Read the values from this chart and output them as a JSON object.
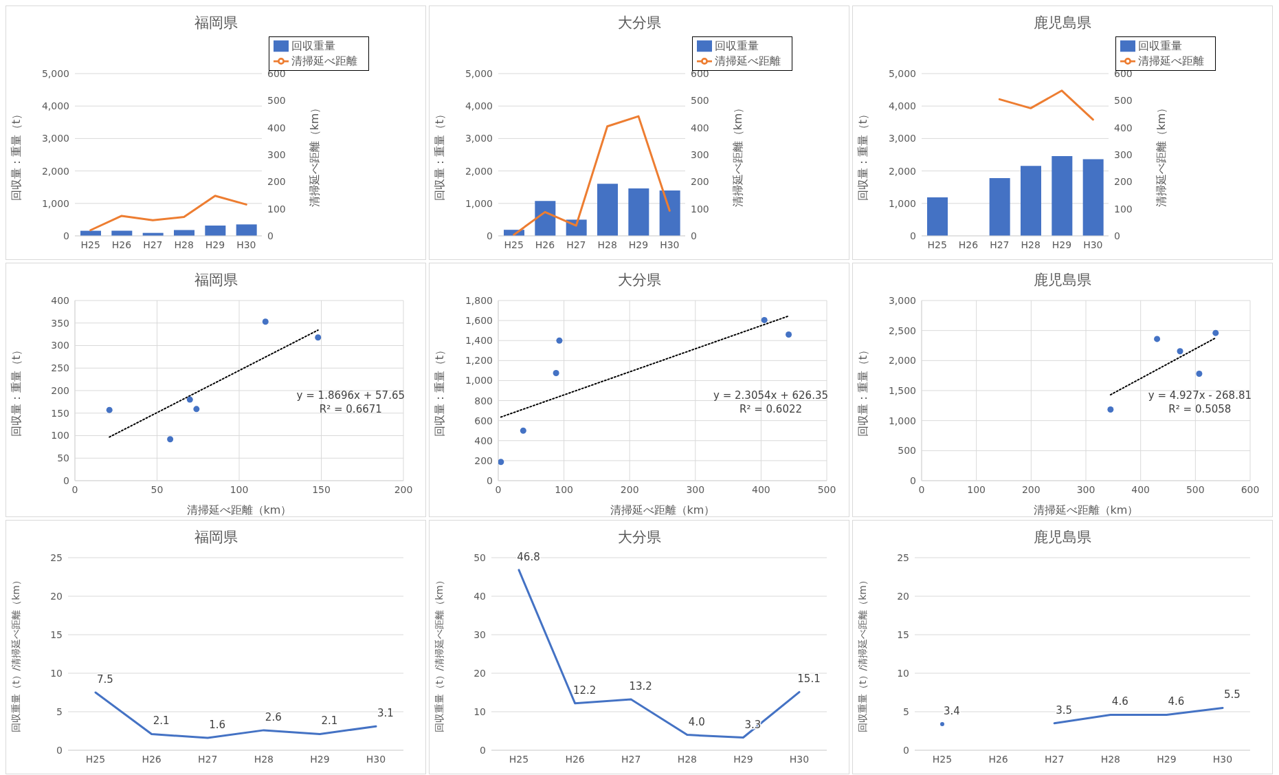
{
  "chart_data": [
    {
      "type": "bar",
      "title": "福岡県",
      "categories": [
        "H25",
        "H26",
        "H27",
        "H28",
        "H29",
        "H30"
      ],
      "ylabel": "回収量：重量（t）",
      "y2label": "清掃延べ距離（km）",
      "ylim": [
        0,
        5000
      ],
      "yticks": [
        0,
        {
          "value": 1000,
          "label": "1,000"
        },
        {
          "value": 2000,
          "label": "2,000"
        },
        {
          "value": 3000,
          "label": "3,000"
        },
        {
          "value": 4000,
          "label": "4,000"
        },
        {
          "value": 5000,
          "label": "5,000"
        }
      ],
      "y2lim": [
        0,
        600
      ],
      "y2ticks": [
        0,
        100,
        200,
        300,
        400,
        500,
        600
      ],
      "grid": "y",
      "legend": "top right",
      "series": [
        {
          "name": "回収重量",
          "type": "bar",
          "color": "#4472c4",
          "values": [
            157,
            159,
            92,
            180,
            318,
            353
          ]
        },
        {
          "name": "清掃延べ距離",
          "type": "line",
          "axis": "y2",
          "color": "#ed7d31",
          "values": [
            21,
            74,
            58,
            70,
            148,
            116
          ]
        }
      ]
    },
    {
      "type": "bar",
      "title": "大分県",
      "categories": [
        "H25",
        "H26",
        "H27",
        "H28",
        "H29",
        "H30"
      ],
      "ylabel": "回収量：重量（t）",
      "y2label": "清掃延べ距離（km）",
      "ylim": [
        0,
        5000
      ],
      "yticks": [
        0,
        {
          "value": 1000,
          "label": "1,000"
        },
        {
          "value": 2000,
          "label": "2,000"
        },
        {
          "value": 3000,
          "label": "3,000"
        },
        {
          "value": 4000,
          "label": "4,000"
        },
        {
          "value": 5000,
          "label": "5,000"
        }
      ],
      "y2lim": [
        0,
        600
      ],
      "y2ticks": [
        0,
        100,
        200,
        300,
        400,
        500,
        600
      ],
      "grid": "y",
      "legend": "top right",
      "series": [
        {
          "name": "回収重量",
          "type": "bar",
          "color": "#4472c4",
          "values": [
            187,
            1075,
            500,
            1605,
            1460,
            1400
          ]
        },
        {
          "name": "清掃延べ距離",
          "type": "line",
          "axis": "y2",
          "color": "#ed7d31",
          "values": [
            4,
            88,
            38,
            405,
            442,
            93
          ]
        }
      ]
    },
    {
      "type": "bar",
      "title": "鹿児島県",
      "categories": [
        "H25",
        "H26",
        "H27",
        "H28",
        "H29",
        "H30"
      ],
      "ylabel": "回収量：重量（t）",
      "y2label": "清掃延べ距離（km）",
      "ylim": [
        0,
        5000
      ],
      "yticks": [
        0,
        {
          "value": 1000,
          "label": "1,000"
        },
        {
          "value": 2000,
          "label": "2,000"
        },
        {
          "value": 3000,
          "label": "3,000"
        },
        {
          "value": 4000,
          "label": "4,000"
        },
        {
          "value": 5000,
          "label": "5,000"
        }
      ],
      "y2lim": [
        0,
        600
      ],
      "y2ticks": [
        0,
        100,
        200,
        300,
        400,
        500,
        600
      ],
      "grid": "y",
      "legend": "top right",
      "series": [
        {
          "name": "回収重量",
          "type": "bar",
          "color": "#4472c4",
          "values": [
            1185,
            null,
            1780,
            2155,
            2460,
            2360
          ]
        },
        {
          "name": "清掃延べ距離",
          "type": "line",
          "axis": "y2",
          "color": "#ed7d31",
          "values": [
            null,
            null,
            505,
            472,
            537,
            430
          ]
        }
      ]
    },
    {
      "type": "scatter",
      "title": "福岡県",
      "xlabel": "清掃延べ距離（km）",
      "ylabel": "回収量：重量（t）",
      "xlim": [
        0,
        200
      ],
      "xticks": [
        0,
        50,
        100,
        150,
        200
      ],
      "ylim": [
        0,
        400
      ],
      "yticks": [
        0,
        50,
        100,
        150,
        200,
        250,
        300,
        350,
        400
      ],
      "grid": true,
      "series": [
        {
          "type": "scatter",
          "color": "#4472c4",
          "marker": "circle",
          "x": [
            21,
            74,
            58,
            70,
            148,
            116
          ],
          "values": [
            157,
            159,
            92,
            180,
            318,
            353
          ]
        },
        {
          "type": "line",
          "color": "#000000",
          "line_style": "dotted",
          "x": [
            21,
            148
          ],
          "values": [
            96.9,
            334.3
          ]
        }
      ],
      "annotations": [
        "y = 1.8696x + 57.65",
        "R² = 0.6671"
      ]
    },
    {
      "type": "scatter",
      "title": "大分県",
      "xlabel": "清掃延べ距離（km）",
      "ylabel": "回収量：重量（t）",
      "xlim": [
        0,
        500
      ],
      "xticks": [
        0,
        100,
        200,
        300,
        400,
        500
      ],
      "ylim": [
        0,
        1800
      ],
      "yticks": [
        0,
        200,
        400,
        600,
        800,
        {
          "value": 1000,
          "label": "1,000"
        },
        {
          "value": 1200,
          "label": "1,200"
        },
        {
          "value": 1400,
          "label": "1,400"
        },
        {
          "value": 1600,
          "label": "1,600"
        },
        {
          "value": 1800,
          "label": "1,800"
        }
      ],
      "grid": true,
      "series": [
        {
          "type": "scatter",
          "color": "#4472c4",
          "marker": "circle",
          "x": [
            4,
            88,
            38,
            405,
            442,
            93
          ],
          "values": [
            187,
            1075,
            500,
            1605,
            1460,
            1400
          ]
        },
        {
          "type": "line",
          "color": "#000000",
          "line_style": "dotted",
          "x": [
            4,
            442
          ],
          "values": [
            635.6,
            1645.3
          ]
        }
      ],
      "annotations": [
        "y = 2.3054x + 626.35",
        "R² = 0.6022"
      ]
    },
    {
      "type": "scatter",
      "title": "鹿児島県",
      "xlabel": "清掃延べ距離（km）",
      "ylabel": "回収量：重量（t）",
      "xlim": [
        0,
        600
      ],
      "xticks": [
        0,
        100,
        200,
        300,
        400,
        500,
        600
      ],
      "ylim": [
        0,
        3000
      ],
      "yticks": [
        0,
        500,
        {
          "value": 1000,
          "label": "1,000"
        },
        {
          "value": 1500,
          "label": "1,500"
        },
        {
          "value": 2000,
          "label": "2,000"
        },
        {
          "value": 2500,
          "label": "2,500"
        },
        {
          "value": 3000,
          "label": "3,000"
        }
      ],
      "grid": true,
      "series": [
        {
          "type": "scatter",
          "color": "#4472c4",
          "marker": "circle",
          "x": [
            345,
            430,
            472,
            507,
            537
          ],
          "values": [
            1185,
            2360,
            2155,
            1780,
            2460
          ]
        },
        {
          "type": "line",
          "color": "#000000",
          "line_style": "dotted",
          "x": [
            345,
            537
          ],
          "values": [
            1431,
            2377
          ]
        }
      ],
      "annotations": [
        "y = 4.927x - 268.81",
        "R² = 0.5058"
      ]
    },
    {
      "type": "line",
      "title": "福岡県",
      "categories": [
        "H25",
        "H26",
        "H27",
        "H28",
        "H29",
        "H30"
      ],
      "ylabel": "回収重量（t）/清掃延べ距離（km）",
      "ylim": [
        0,
        25
      ],
      "yticks": [
        0,
        5,
        10,
        15,
        20,
        25
      ],
      "grid": "y",
      "color": "#4472c4",
      "values": [
        7.5,
        2.1,
        1.6,
        2.6,
        2.1,
        3.1
      ],
      "value_labels": [
        "7.5",
        "2.1",
        "1.6",
        "2.6",
        "2.1",
        "3.1"
      ]
    },
    {
      "type": "line",
      "title": "大分県",
      "categories": [
        "H25",
        "H26",
        "H27",
        "H28",
        "H29",
        "H30"
      ],
      "ylabel": "回収重量（t）/清掃延べ距離（km）",
      "ylim": [
        0,
        50
      ],
      "yticks": [
        0,
        10,
        20,
        30,
        40,
        50
      ],
      "grid": "y",
      "color": "#4472c4",
      "values": [
        46.8,
        12.2,
        13.2,
        4.0,
        3.3,
        15.1
      ],
      "value_labels": [
        "46.8",
        "12.2",
        "13.2",
        "4.0",
        "3.3",
        "15.1"
      ]
    },
    {
      "type": "line",
      "title": "鹿児島県",
      "categories": [
        "H25",
        "H26",
        "H27",
        "H28",
        "H29",
        "H30"
      ],
      "ylabel": "回収重量（t）/清掃延べ距離（km）",
      "ylim": [
        0,
        25
      ],
      "yticks": [
        0,
        5,
        10,
        15,
        20,
        25
      ],
      "grid": "y",
      "color": "#4472c4",
      "values": [
        3.4,
        null,
        3.5,
        4.6,
        4.6,
        5.5
      ],
      "value_labels": [
        "3.4",
        null,
        "3.5",
        "4.6",
        "4.6",
        "5.5"
      ]
    }
  ]
}
